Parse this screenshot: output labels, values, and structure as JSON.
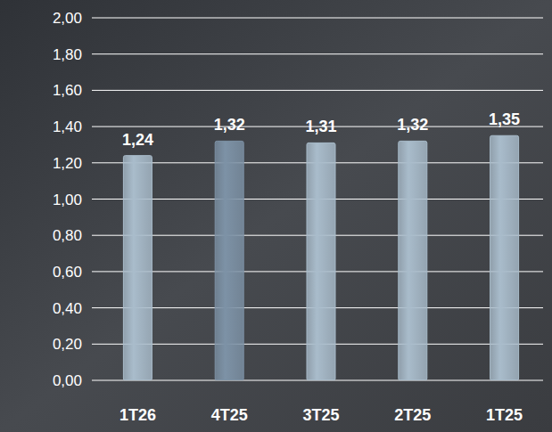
{
  "chart_data": {
    "type": "bar",
    "categories": [
      "1T26",
      "4T25",
      "3T25",
      "2T25",
      "1T25"
    ],
    "values": [
      1.24,
      1.32,
      1.31,
      1.32,
      1.35
    ],
    "value_labels": [
      "1,24",
      "1,32",
      "1,31",
      "1,32",
      "1,35"
    ],
    "colors": [
      "#a9bccb",
      "#7d92a6",
      "#a9bccb",
      "#a9bccb",
      "#a9bccb"
    ],
    "ylim": [
      0,
      2
    ],
    "yticks": [
      {
        "value": 0,
        "label": "0,00"
      },
      {
        "value": 0.2,
        "label": "0,20"
      },
      {
        "value": 0.4,
        "label": "0,40"
      },
      {
        "value": 0.6,
        "label": "0,60"
      },
      {
        "value": 0.8,
        "label": "0,80"
      },
      {
        "value": 1,
        "label": "1,00"
      },
      {
        "value": 1.2,
        "label": "1,20"
      },
      {
        "value": 1.4,
        "label": "1,40"
      },
      {
        "value": 1.6,
        "label": "1,60"
      },
      {
        "value": 1.8,
        "label": "1,80"
      },
      {
        "value": 2,
        "label": "2,00"
      }
    ],
    "grid": true,
    "data_labels": true
  }
}
